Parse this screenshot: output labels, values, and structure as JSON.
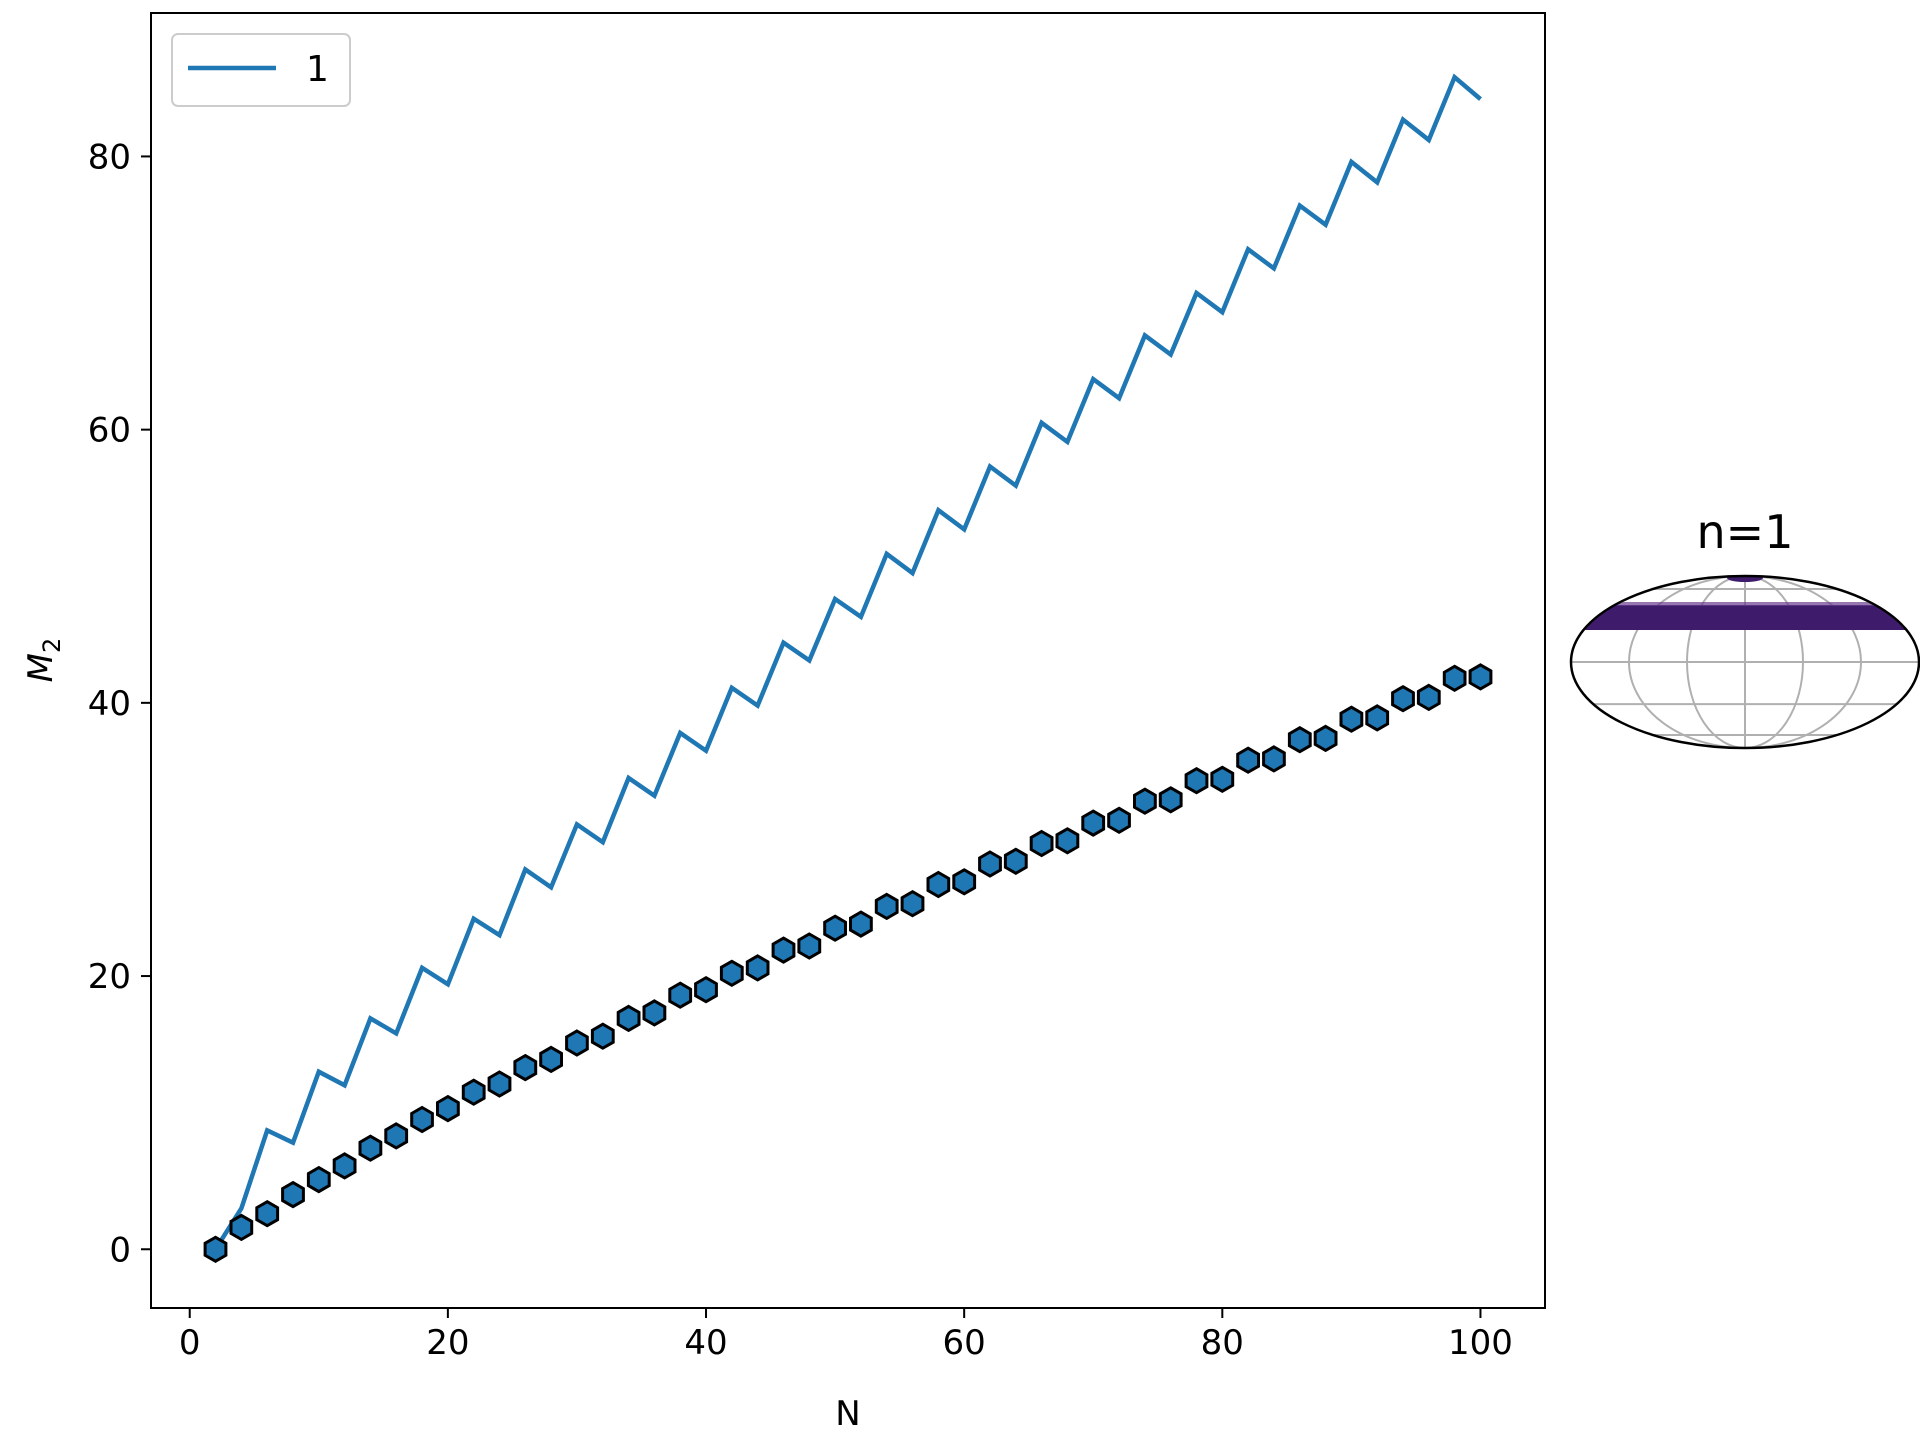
{
  "chart_data": {
    "type": "line",
    "xlabel": "N",
    "ylabel_main": "M",
    "ylabel_sub": "2",
    "xlim": [
      -3,
      105
    ],
    "ylim": [
      -4.3,
      90.5
    ],
    "xticks": [
      0,
      20,
      40,
      60,
      80,
      100
    ],
    "yticks": [
      0,
      20,
      40,
      60,
      80
    ],
    "grid": false,
    "legend_position": "top-left",
    "series": [
      {
        "name": "1",
        "style": "line",
        "color": "#1f77b4",
        "x": [
          2,
          4,
          6,
          8,
          10,
          12,
          14,
          16,
          18,
          20,
          22,
          24,
          26,
          28,
          30,
          32,
          34,
          36,
          38,
          40,
          42,
          44,
          46,
          48,
          50,
          52,
          54,
          56,
          58,
          60,
          62,
          64,
          66,
          68,
          70,
          72,
          74,
          76,
          78,
          80,
          82,
          84,
          86,
          88,
          90,
          92,
          94,
          96,
          98,
          100
        ],
        "y": [
          0.0,
          3.0,
          8.7,
          7.8,
          13.0,
          12.0,
          16.9,
          15.8,
          20.6,
          19.4,
          24.2,
          23.0,
          27.8,
          26.5,
          31.1,
          29.8,
          34.5,
          33.2,
          37.8,
          36.5,
          41.1,
          39.8,
          44.4,
          43.1,
          47.6,
          46.3,
          50.9,
          49.5,
          54.1,
          52.7,
          57.3,
          55.9,
          60.5,
          59.1,
          63.7,
          62.3,
          66.9,
          65.5,
          70.0,
          68.6,
          73.2,
          71.8,
          76.4,
          75.0,
          79.6,
          78.1,
          82.7,
          81.2,
          85.8,
          84.2
        ]
      },
      {
        "style": "markers",
        "marker": "hexagon",
        "color": "#1f77b4",
        "edge_color": "#000000",
        "x": [
          2,
          4,
          6,
          8,
          10,
          12,
          14,
          16,
          18,
          20,
          22,
          24,
          26,
          28,
          30,
          32,
          34,
          36,
          38,
          40,
          42,
          44,
          46,
          48,
          50,
          52,
          54,
          56,
          58,
          60,
          62,
          64,
          66,
          68,
          70,
          72,
          74,
          76,
          78,
          80,
          82,
          84,
          86,
          88,
          90,
          92,
          94,
          96,
          98,
          100
        ],
        "y": [
          0.0,
          1.6,
          2.6,
          4.0,
          5.1,
          6.1,
          7.4,
          8.3,
          9.5,
          10.3,
          11.5,
          12.1,
          13.3,
          13.9,
          15.1,
          15.6,
          16.9,
          17.3,
          18.6,
          19.0,
          20.2,
          20.6,
          21.9,
          22.2,
          23.5,
          23.8,
          25.1,
          25.3,
          26.7,
          26.9,
          28.2,
          28.4,
          29.7,
          29.9,
          31.2,
          31.4,
          32.8,
          32.9,
          34.3,
          34.4,
          35.8,
          35.9,
          37.3,
          37.4,
          38.8,
          38.9,
          40.3,
          40.4,
          41.8,
          41.9
        ]
      }
    ],
    "inset": {
      "title": "n=1",
      "type": "sphere-projection",
      "band_color": "#3f1b6b",
      "grid_color": "#b0b0b0"
    }
  }
}
